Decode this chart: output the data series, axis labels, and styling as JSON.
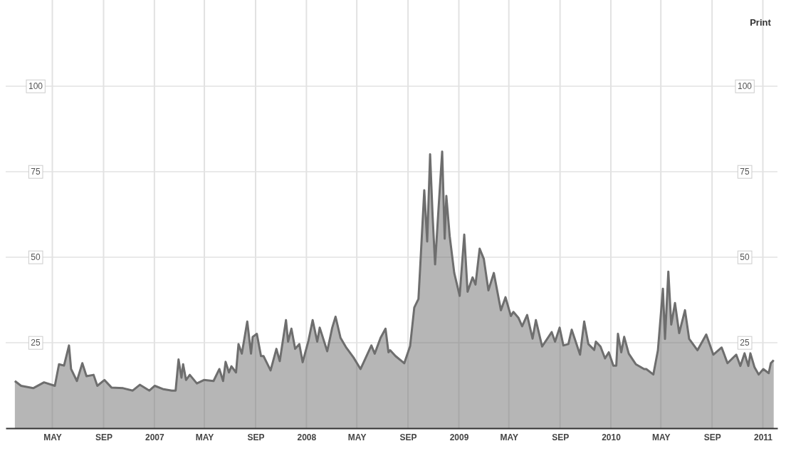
{
  "chart_data": {
    "type": "area",
    "x": [
      "2006-01-31",
      "2006-02-15",
      "2006-03-16",
      "2006-04-11",
      "2006-05-07",
      "2006-05-17",
      "2006-05-29",
      "2006-06-10",
      "2006-06-15",
      "2006-06-29",
      "2006-07-12",
      "2006-07-22",
      "2006-08-08",
      "2006-08-17",
      "2006-09-03",
      "2006-09-20",
      "2006-10-18",
      "2006-11-10",
      "2006-11-27",
      "2006-12-20",
      "2007-01-02",
      "2007-01-23",
      "2007-02-12",
      "2007-02-21",
      "2007-02-28",
      "2007-03-07",
      "2007-03-11",
      "2007-03-18",
      "2007-03-27",
      "2007-04-13",
      "2007-04-30",
      "2007-05-23",
      "2007-06-06",
      "2007-06-15",
      "2007-06-21",
      "2007-06-29",
      "2007-07-05",
      "2007-07-16",
      "2007-07-22",
      "2007-07-30",
      "2007-08-12",
      "2007-08-21",
      "2007-08-25",
      "2007-09-04",
      "2007-09-14",
      "2007-09-20",
      "2007-10-07",
      "2007-10-21",
      "2007-10-29",
      "2007-11-13",
      "2007-11-18",
      "2007-11-26",
      "2007-12-05",
      "2007-12-15",
      "2007-12-23",
      "2008-01-06",
      "2008-01-16",
      "2008-01-27",
      "2008-02-02",
      "2008-02-20",
      "2008-03-03",
      "2008-03-11",
      "2008-03-23",
      "2008-04-06",
      "2008-04-23",
      "2008-05-10",
      "2008-06-05",
      "2008-06-13",
      "2008-06-27",
      "2008-07-09",
      "2008-07-16",
      "2008-07-20",
      "2008-08-02",
      "2008-08-23",
      "2008-09-06",
      "2008-09-16",
      "2008-09-26",
      "2008-09-30",
      "2008-10-10",
      "2008-10-17",
      "2008-10-24",
      "2008-10-30",
      "2008-11-05",
      "2008-11-13",
      "2008-11-22",
      "2008-11-28",
      "2008-12-02",
      "2008-12-10",
      "2008-12-21",
      "2009-01-03",
      "2009-01-14",
      "2009-01-22",
      "2009-02-03",
      "2009-02-10",
      "2009-02-20",
      "2009-03-02",
      "2009-03-13",
      "2009-03-26",
      "2009-04-12",
      "2009-04-23",
      "2009-05-06",
      "2009-05-12",
      "2009-05-24",
      "2009-06-02",
      "2009-06-14",
      "2009-06-27",
      "2009-07-05",
      "2009-07-20",
      "2009-08-12",
      "2009-08-20",
      "2009-08-31",
      "2009-09-09",
      "2009-09-21",
      "2009-09-29",
      "2009-10-19",
      "2009-10-29",
      "2009-11-08",
      "2009-11-22",
      "2009-11-26",
      "2009-12-07",
      "2009-12-18",
      "2009-12-27",
      "2010-01-07",
      "2010-01-14",
      "2010-01-18",
      "2010-01-26",
      "2010-02-02",
      "2010-02-13",
      "2010-03-02",
      "2010-03-22",
      "2010-03-27",
      "2010-04-13",
      "2010-04-24",
      "2010-05-06",
      "2010-05-11",
      "2010-05-19",
      "2010-05-26",
      "2010-06-04",
      "2010-06-14",
      "2010-06-28",
      "2010-07-08",
      "2010-07-28",
      "2010-08-18",
      "2010-09-04",
      "2010-09-24",
      "2010-10-08",
      "2010-10-29",
      "2010-11-08",
      "2010-11-18",
      "2010-11-27",
      "2010-12-02",
      "2010-12-12",
      "2010-12-22",
      "2011-01-02",
      "2011-01-15",
      "2011-01-20",
      "2011-01-27"
    ],
    "series": [
      {
        "color": "#6e6e6e",
        "values": [
          13.8,
          12.4,
          11.7,
          13.4,
          12.4,
          18.7,
          18.3,
          24.2,
          17.3,
          13.8,
          19.0,
          15.2,
          15.6,
          12.4,
          14.1,
          11.9,
          11.7,
          11.0,
          12.7,
          11.0,
          12.4,
          11.4,
          11.0,
          11.0,
          20.1,
          14.8,
          18.7,
          14.1,
          15.6,
          13.1,
          14.1,
          13.8,
          17.3,
          13.8,
          19.4,
          16.3,
          18.1,
          16.3,
          24.6,
          21.8,
          31.2,
          21.8,
          26.7,
          27.6,
          21.1,
          21.1,
          16.9,
          23.2,
          19.6,
          31.6,
          25.3,
          29.1,
          23.2,
          24.6,
          19.3,
          25.6,
          31.6,
          25.3,
          29.4,
          22.5,
          29.4,
          32.6,
          26.4,
          23.5,
          20.7,
          17.3,
          24.2,
          21.8,
          26.4,
          29.1,
          22.2,
          22.8,
          21.1,
          19.0,
          24.0,
          35.3,
          37.8,
          46.6,
          69.6,
          54.6,
          80.1,
          62.1,
          47.9,
          63.8,
          80.9,
          55.4,
          67.9,
          56.2,
          45.4,
          38.7,
          56.6,
          39.9,
          44.1,
          42.0,
          52.5,
          49.5,
          40.3,
          45.4,
          34.5,
          38.3,
          32.8,
          34.0,
          32.3,
          29.8,
          33.1,
          26.2,
          31.6,
          23.9,
          28.1,
          25.3,
          29.4,
          24.2,
          24.6,
          28.8,
          21.5,
          31.2,
          24.6,
          22.9,
          25.3,
          23.9,
          20.4,
          22.2,
          18.3,
          18.3,
          27.6,
          22.2,
          26.7,
          21.8,
          18.7,
          17.3,
          17.3,
          15.7,
          22.8,
          40.8,
          26.1,
          45.8,
          30.3,
          36.6,
          27.8,
          34.5,
          26.1,
          22.8,
          27.4,
          21.5,
          23.6,
          19.0,
          21.5,
          18.2,
          21.9,
          18.2,
          21.9,
          17.8,
          15.7,
          17.3,
          16.1,
          19.0,
          19.9
        ]
      }
    ],
    "xlim": [
      "2006-01-09",
      "2011-02-05"
    ],
    "xticks": [
      {
        "value": "2006-05-01",
        "label": "MAY"
      },
      {
        "value": "2006-09-01",
        "label": "SEP"
      },
      {
        "value": "2007-01-01",
        "label": "2007"
      },
      {
        "value": "2007-05-01",
        "label": "MAY"
      },
      {
        "value": "2007-09-01",
        "label": "SEP"
      },
      {
        "value": "2008-01-01",
        "label": "2008"
      },
      {
        "value": "2008-05-01",
        "label": "MAY"
      },
      {
        "value": "2008-09-01",
        "label": "SEP"
      },
      {
        "value": "2009-01-01",
        "label": "2009"
      },
      {
        "value": "2009-05-01",
        "label": "MAY"
      },
      {
        "value": "2009-09-01",
        "label": "SEP"
      },
      {
        "value": "2010-01-01",
        "label": "2010"
      },
      {
        "value": "2010-05-01",
        "label": "MAY"
      },
      {
        "value": "2010-09-01",
        "label": "SEP"
      },
      {
        "value": "2011-01-01",
        "label": "2011"
      }
    ],
    "ylim": [
      0,
      125
    ],
    "yticks": [
      25,
      50,
      75,
      100
    ],
    "y2lim": [
      0,
      125
    ],
    "y2ticks": [
      25,
      50,
      75,
      100
    ],
    "grid": true,
    "annotations": [
      "Print"
    ]
  }
}
